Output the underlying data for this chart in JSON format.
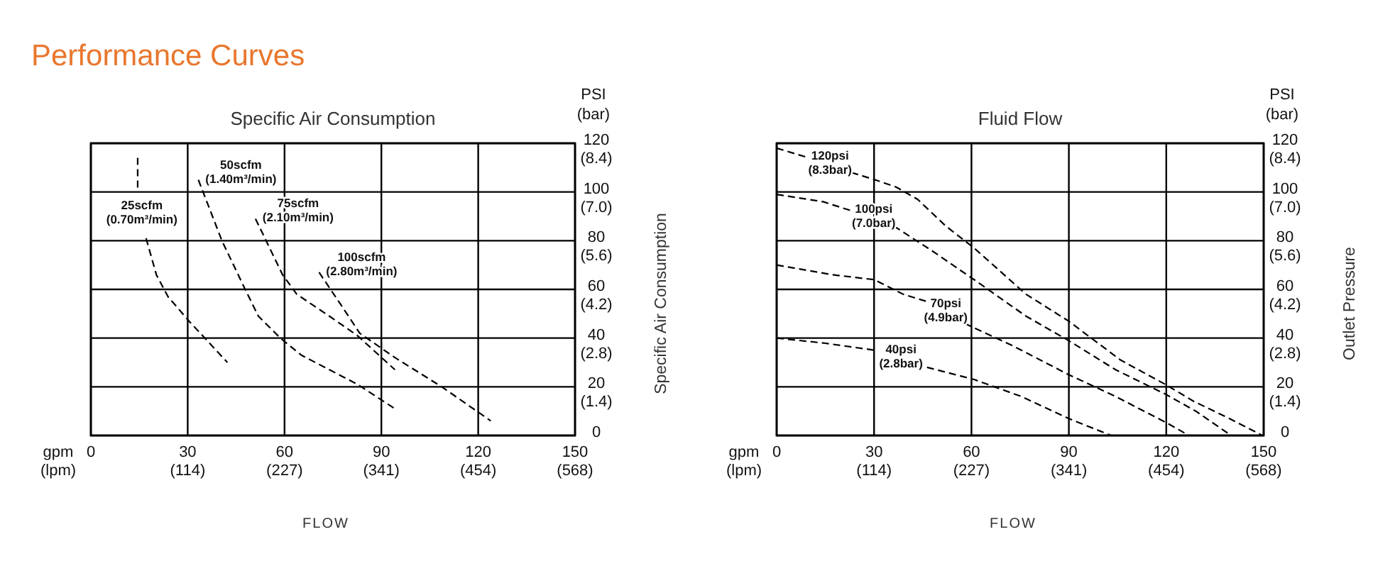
{
  "chart_data": [
    {
      "type": "line",
      "title": "Specific Air Consumption",
      "xlabel": "FLOW",
      "y2label": "Specific Air Consumption",
      "xlim": [
        0,
        150
      ],
      "ylim": [
        0,
        120
      ],
      "xticks": [
        0,
        30,
        60,
        90,
        120,
        150
      ],
      "yticks": [
        0,
        20,
        40,
        60,
        80,
        100,
        120
      ],
      "x2lim": [
        0,
        567.75
      ],
      "x2ticks": [
        {
          "value": 113.55,
          "label": "(114)"
        },
        {
          "value": 227.1,
          "label": "(227)"
        },
        {
          "value": 340.65,
          "label": "(341)"
        },
        {
          "value": 454.2,
          "label": "(454)"
        },
        {
          "value": 567.75,
          "label": "(568)"
        }
      ],
      "y2lim": [
        0,
        8.4
      ],
      "y2ticks": [
        {
          "value": 1.4,
          "label": "(1.4)"
        },
        {
          "value": 2.8,
          "label": "(2.8)"
        },
        {
          "value": 4.2,
          "label": "(4.2)"
        },
        {
          "value": 5.6,
          "label": "(5.6)"
        },
        {
          "value": 7,
          "label": "(7.0)"
        },
        {
          "value": 8.4,
          "label": "(8.4)"
        }
      ],
      "grid": true,
      "line_style": "dashed",
      "series": [
        {
          "name": "25scfm\n(0.70m³/min)",
          "color": "#000000",
          "x": [
            14.5,
            14.5,
            null,
            17.1,
            20.3,
            23.9,
            30.4,
            42.3
          ],
          "values": [
            114,
            100,
            null,
            81,
            66,
            57,
            47,
            30
          ]
        },
        {
          "name": "50scfm\n(1.40m³/min)",
          "color": "#000000",
          "x": [
            33.3,
            40.6,
            47.8,
            51.9,
            58.7,
            65.2,
            73.9,
            82.6,
            94.2
          ],
          "values": [
            105,
            80,
            60,
            49,
            40,
            33,
            27,
            21,
            11
          ]
        },
        {
          "name": "75scfm\n(2.10m³/min)",
          "color": "#000000",
          "x": [
            51,
            59.4,
            63.8,
            73.9,
            82.6,
            94.2
          ],
          "values": [
            89,
            66,
            58,
            49,
            41,
            27
          ]
        },
        {
          "name": "100scfm\n(2.80m³/min)",
          "color": "#000000",
          "x": [
            70.7,
            76.8,
            83.3,
            94.2,
            108.7,
            123.9
          ],
          "values": [
            67,
            55,
            42,
            32,
            20,
            6
          ]
        }
      ],
      "annotations": [
        "Performance Curves",
        "gpm\n(lpm)",
        "PSI\n(bar)"
      ]
    },
    {
      "type": "line",
      "title": "Fluid Flow",
      "xlabel": "FLOW",
      "y2label": "Outlet Pressure",
      "xlim": [
        0,
        150
      ],
      "ylim": [
        0,
        120
      ],
      "xticks": [
        0,
        30,
        60,
        90,
        120,
        150
      ],
      "yticks": [
        0,
        20,
        40,
        60,
        80,
        100,
        120
      ],
      "x2lim": [
        0,
        567.75
      ],
      "x2ticks": [
        {
          "value": 113.55,
          "label": "(114)"
        },
        {
          "value": 227.1,
          "label": "(227)"
        },
        {
          "value": 340.65,
          "label": "(341)"
        },
        {
          "value": 454.2,
          "label": "(454)"
        },
        {
          "value": 567.75,
          "label": "(568)"
        }
      ],
      "y2lim": [
        0,
        8.4
      ],
      "y2ticks": [
        {
          "value": 1.4,
          "label": "(1.4)"
        },
        {
          "value": 2.8,
          "label": "(2.8)"
        },
        {
          "value": 4.2,
          "label": "(4.2)"
        },
        {
          "value": 5.6,
          "label": "(5.6)"
        },
        {
          "value": 7,
          "label": "(7.0)"
        },
        {
          "value": 8.4,
          "label": "(8.4)"
        }
      ],
      "grid": true,
      "line_style": "dashed",
      "series": [
        {
          "name": "120psi\n(8.3bar)",
          "color": "#000000",
          "x": [
            0,
            9.9,
            null,
            23,
            30.3,
            36.8,
            43.4,
            52.1,
            60.8,
            76.8,
            89.9,
            105.9,
            119.7,
            128.5,
            139.4,
            149.6
          ],
          "values": [
            118,
            114,
            null,
            108,
            105,
            102,
            97,
            86,
            77,
            58,
            47,
            31,
            21,
            14,
            7,
            0
          ]
        },
        {
          "name": "100psi\n(7.0bar)",
          "color": "#000000",
          "x": [
            0,
            14.3,
            23.7,
            null,
            36.1,
            47.7,
            60.8,
            76.8,
            89.9,
            104.4,
            119.7,
            129.1,
            140
          ],
          "values": [
            99,
            96,
            92,
            null,
            86,
            76,
            64,
            49,
            39,
            27,
            17,
            10,
            0
          ]
        },
        {
          "name": "70psi\n(4.9bar)",
          "color": "#000000",
          "x": [
            0,
            17.2,
            30,
            39,
            46.3,
            null,
            57.9,
            72.5,
            89.9,
            104.4,
            120.4,
            127
          ],
          "values": [
            70,
            66,
            64,
            58,
            55,
            null,
            46,
            37,
            25,
            16,
            5,
            0
          ]
        },
        {
          "name": "40psi\n(2.8bar)",
          "color": "#000000",
          "x": [
            0,
            14.3,
            30.3,
            null,
            46.3,
            60.8,
            75.4,
            89.9,
            103
          ],
          "values": [
            40,
            38,
            35,
            null,
            28,
            23,
            16,
            7,
            0
          ]
        }
      ],
      "annotations": [
        "gpm\n(lpm)",
        "PSI\n(bar)"
      ]
    }
  ]
}
